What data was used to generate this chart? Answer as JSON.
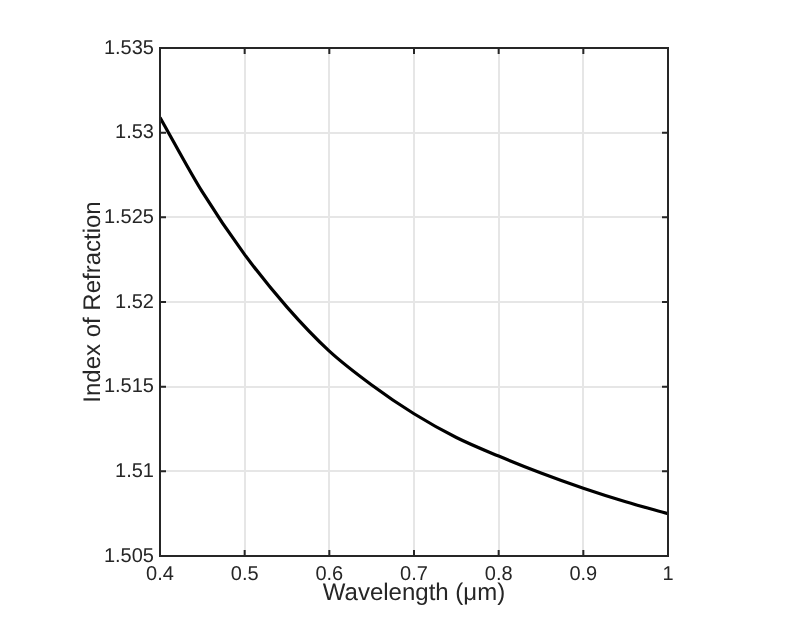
{
  "chart_data": {
    "type": "line",
    "xlabel": "Wavelength (μm)",
    "ylabel": "Index of Refraction",
    "x": [
      0.4,
      0.45,
      0.5,
      0.55,
      0.6,
      0.65,
      0.7,
      0.75,
      0.8,
      0.85,
      0.9,
      0.95,
      1.0
    ],
    "series": [
      {
        "color": "#000000",
        "values": [
          1.5309,
          1.5265,
          1.5228,
          1.5197,
          1.5171,
          1.5151,
          1.5134,
          1.512,
          1.5109,
          1.5099,
          1.509,
          1.5082,
          1.5075
        ]
      }
    ],
    "xlim": [
      0.4,
      1
    ],
    "xticks": [
      0.4,
      0.5,
      0.6,
      0.7,
      0.8,
      0.9,
      1
    ],
    "ylim": [
      1.505,
      1.535
    ],
    "yticks": [
      1.505,
      1.51,
      1.515,
      1.52,
      1.525,
      1.53,
      1.535
    ],
    "grid": true,
    "legend": false,
    "marker": "none",
    "line_style": "solid"
  }
}
